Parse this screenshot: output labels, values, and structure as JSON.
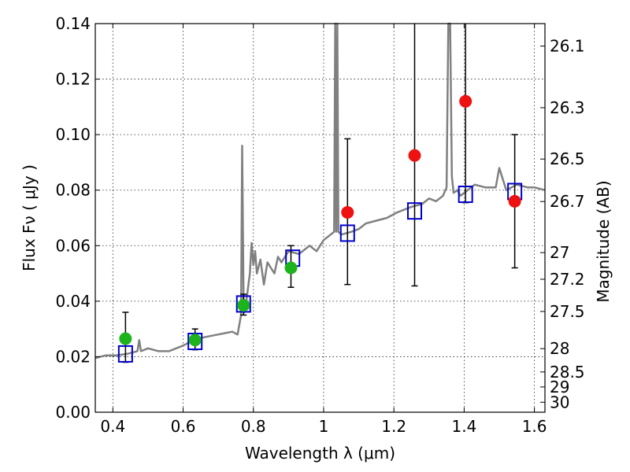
{
  "chart_data": {
    "type": "scatter",
    "title": "",
    "xlabel": "Wavelength  λ (μm)",
    "ylabel": "Flux  Fν  ( μJy )",
    "ylabel_right": "Magnitude (AB)",
    "xlim": [
      0.35,
      1.63
    ],
    "ylim": [
      0.0,
      0.14
    ],
    "grid": true,
    "x_ticks": [
      0.4,
      0.6,
      0.8,
      1.0,
      1.2,
      1.4,
      1.6
    ],
    "x_tick_labels": [
      "0.4",
      "0.6",
      "0.8",
      "1",
      "1.2",
      "1.4",
      "1.6"
    ],
    "y_ticks": [
      0.0,
      0.02,
      0.04,
      0.06,
      0.08,
      0.1,
      0.12,
      0.14
    ],
    "y_tick_labels": [
      "0.00",
      "0.02",
      "0.04",
      "0.06",
      "0.08",
      "0.10",
      "0.12",
      "0.14"
    ],
    "right_ticks": [
      {
        "label": "26.1",
        "flux": 0.1319
      },
      {
        "label": "26.3",
        "flux": 0.1097
      },
      {
        "label": "26.5",
        "flux": 0.0912
      },
      {
        "label": "26.7",
        "flux": 0.0759
      },
      {
        "label": "27",
        "flux": 0.0575
      },
      {
        "label": "27.2",
        "flux": 0.0479
      },
      {
        "label": "27.5",
        "flux": 0.0363
      },
      {
        "label": "28",
        "flux": 0.0229
      },
      {
        "label": "28.5",
        "flux": 0.0145
      },
      {
        "label": "29",
        "flux": 0.0091
      },
      {
        "label": "30",
        "flux": 0.0036
      }
    ],
    "colors": {
      "model": "#808080",
      "synthetic": "#0000cc",
      "observed_detected": "#1db31d",
      "observed_upper": "#ee1111",
      "errorbar": "#000000"
    },
    "model_spectrum": {
      "x": [
        0.35,
        0.38,
        0.41,
        0.44,
        0.47,
        0.475,
        0.48,
        0.5,
        0.53,
        0.56,
        0.6,
        0.63,
        0.66,
        0.7,
        0.72,
        0.74,
        0.755,
        0.765,
        0.768,
        0.772,
        0.774,
        0.78,
        0.79,
        0.795,
        0.8,
        0.805,
        0.81,
        0.82,
        0.83,
        0.84,
        0.85,
        0.86,
        0.87,
        0.88,
        0.9,
        0.93,
        0.96,
        0.98,
        1.0,
        1.02,
        1.03,
        1.033,
        1.036,
        1.039,
        1.042,
        1.05,
        1.08,
        1.1,
        1.12,
        1.15,
        1.18,
        1.21,
        1.25,
        1.28,
        1.3,
        1.32,
        1.34,
        1.35,
        1.355,
        1.36,
        1.365,
        1.37,
        1.38,
        1.39,
        1.4,
        1.43,
        1.46,
        1.49,
        1.5,
        1.52,
        1.55,
        1.58,
        1.6,
        1.63
      ],
      "y": [
        0.0195,
        0.0205,
        0.0205,
        0.021,
        0.022,
        0.026,
        0.022,
        0.023,
        0.022,
        0.022,
        0.024,
        0.026,
        0.027,
        0.028,
        0.0285,
        0.029,
        0.028,
        0.035,
        0.096,
        0.04,
        0.036,
        0.04,
        0.05,
        0.061,
        0.053,
        0.058,
        0.05,
        0.055,
        0.046,
        0.054,
        0.052,
        0.05,
        0.056,
        0.054,
        0.058,
        0.057,
        0.06,
        0.058,
        0.062,
        0.064,
        0.065,
        0.14,
        0.065,
        0.14,
        0.065,
        0.064,
        0.065,
        0.066,
        0.068,
        0.069,
        0.07,
        0.072,
        0.074,
        0.075,
        0.077,
        0.076,
        0.078,
        0.081,
        0.14,
        0.14,
        0.085,
        0.079,
        0.08,
        0.078,
        0.079,
        0.082,
        0.081,
        0.081,
        0.088,
        0.08,
        0.082,
        0.081,
        0.081,
        0.08
      ]
    },
    "series": [
      {
        "marker": "open-square",
        "x": [
          0.436,
          0.634,
          0.772,
          0.912,
          1.068,
          1.259,
          1.404,
          1.544
        ],
        "y": [
          0.021,
          0.0255,
          0.039,
          0.0555,
          0.0645,
          0.0725,
          0.0785,
          0.0795
        ]
      },
      {
        "marker": "filled-circle",
        "x": [
          0.436,
          0.634,
          0.772,
          0.907
        ],
        "y": [
          0.0265,
          0.026,
          0.0385,
          0.052
        ],
        "err_low": [
          0.018,
          0.0225,
          0.035,
          0.045
        ],
        "err_high": [
          0.036,
          0.03,
          0.0425,
          0.06
        ],
        "color_key": "observed_detected"
      },
      {
        "marker": "filled-circle",
        "x": [
          1.068,
          1.259,
          1.404,
          1.544
        ],
        "y": [
          0.072,
          0.0925,
          0.112,
          0.076
        ],
        "err_low": [
          0.046,
          0.0455,
          0.0755,
          0.052
        ],
        "err_high": [
          0.0985,
          0.14,
          0.14,
          0.1
        ],
        "color_key": "observed_upper"
      }
    ]
  }
}
